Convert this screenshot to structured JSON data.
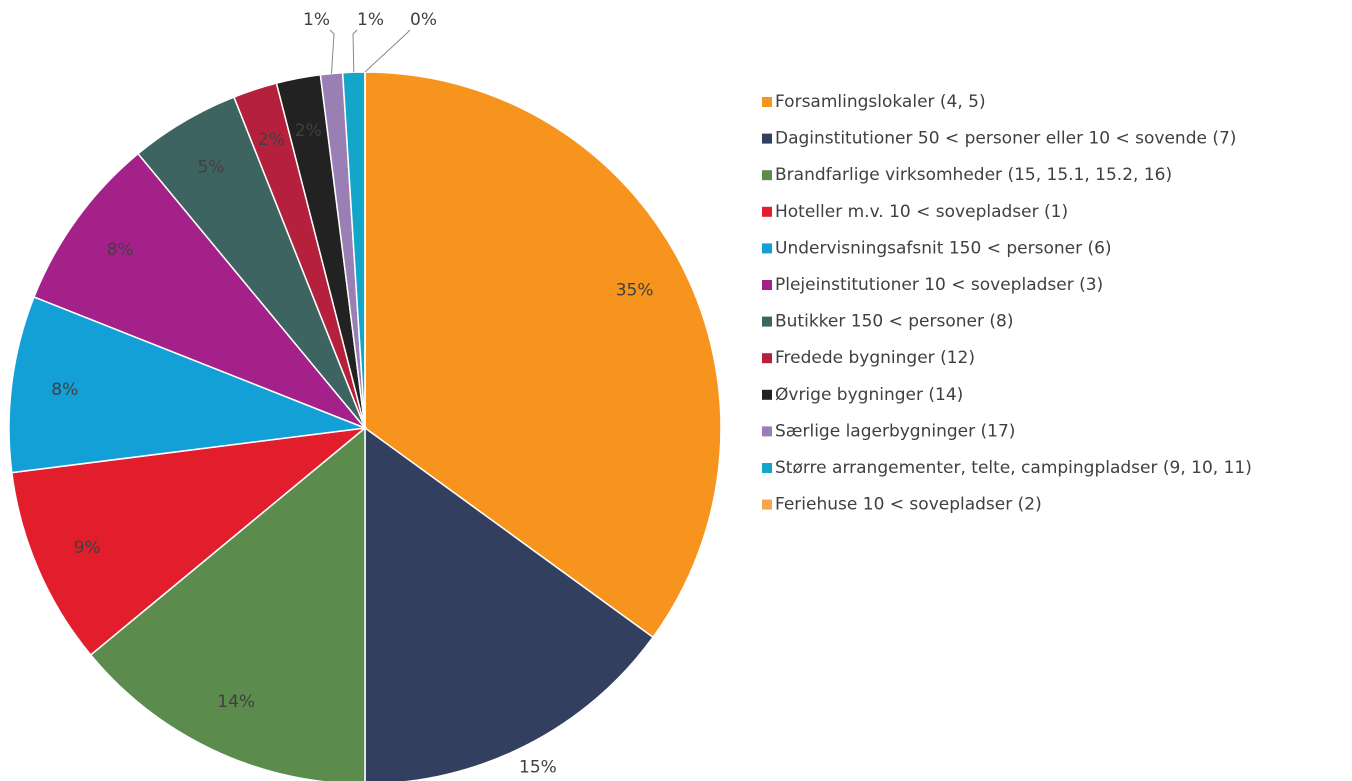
{
  "chart_data": {
    "type": "pie",
    "categories": [
      "Forsamlingslokaler (4, 5)",
      "Daginstitutioner 50 < personer eller 10 < sovende (7)",
      "Brandfarlige virksomheder (15, 15.1, 15.2, 16)",
      "Hoteller m.v. 10 < sovepladser (1)",
      "Undervisningsafsnit 150 < personer (6)",
      "Plejeinstitutioner 10 < sovepladser (3)",
      "Butikker 150 < personer (8)",
      "Fredede bygninger (12)",
      "Øvrige bygninger (14)",
      "Særlige lagerbygninger (17)",
      "Større arrangementer, telte, campingpladser (9, 10, 11)",
      "Feriehuse 10 < sovepladser (2)"
    ],
    "values": [
      35,
      15,
      14,
      9,
      8,
      8,
      5,
      2,
      2,
      1,
      1,
      0
    ],
    "value_labels": [
      "35%",
      "15%",
      "14%",
      "9%",
      "8%",
      "8%",
      "5%",
      "2%",
      "2%",
      "1%",
      "1%",
      "0%"
    ],
    "colors": [
      "#f7941d",
      "#333f5e",
      "#5b8c4e",
      "#e21e2d",
      "#12a0d7",
      "#a4218a",
      "#3e6462",
      "#b5213c",
      "#222222",
      "#9a7fb5",
      "#14a6c9",
      "#f6a54b"
    ],
    "legend": "right"
  }
}
